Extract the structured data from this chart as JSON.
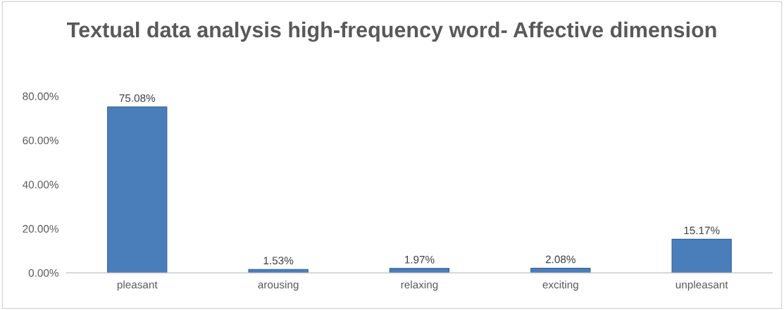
{
  "chart_data": {
    "type": "bar",
    "title": "Textual data analysis high-frequency word- Affective dimension",
    "categories": [
      "pleasant",
      "arousing",
      "relaxing",
      "exciting",
      "unpleasant"
    ],
    "values": [
      75.08,
      1.53,
      1.97,
      2.08,
      15.17
    ],
    "value_labels": [
      "75.08%",
      "1.53%",
      "1.97%",
      "2.08%",
      "15.17%"
    ],
    "color": "#4a7ebb",
    "ylim": [
      0,
      80
    ],
    "yticks": [
      {
        "value": 0,
        "label": "0.00%"
      },
      {
        "value": 20,
        "label": "20.00%"
      },
      {
        "value": 40,
        "label": "40.00%"
      },
      {
        "value": 60,
        "label": "60.00%"
      },
      {
        "value": 80,
        "label": "80.00%"
      }
    ],
    "grid": false,
    "legend": false
  }
}
